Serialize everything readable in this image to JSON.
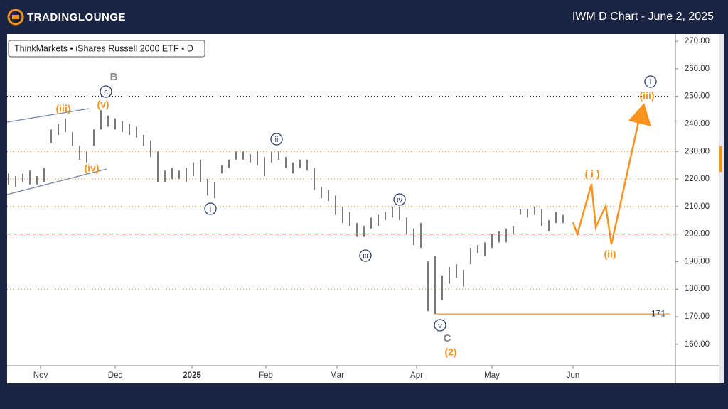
{
  "header": {
    "brand": "TradingLounge",
    "title": "IWM D Chart - June 2, 2025"
  },
  "chart_data": {
    "type": "ohlc",
    "legend": "ThinkMarkets • iShares Russell 2000 ETF • D",
    "color": "#333333",
    "high": [
      222,
      221,
      222,
      223,
      221,
      224,
      238,
      240,
      242,
      237,
      232,
      230,
      238,
      245,
      243,
      242,
      241,
      240,
      239,
      236,
      234,
      230,
      223,
      224,
      223,
      224,
      226,
      227,
      220,
      219,
      225,
      227,
      230,
      230,
      229,
      230,
      228,
      230,
      230,
      228,
      226,
      227,
      227,
      224,
      217,
      216,
      214,
      210,
      208,
      204,
      203,
      206,
      207,
      208,
      210,
      210,
      206,
      202,
      204,
      190,
      192,
      185,
      188,
      189,
      187,
      195,
      196,
      197,
      200,
      201,
      202,
      203,
      209,
      209,
      210,
      209,
      205,
      208,
      207
    ],
    "low": [
      218,
      217,
      219,
      218,
      218,
      219,
      233,
      236,
      237,
      232,
      227,
      226,
      232,
      238,
      239,
      238,
      237,
      236,
      235,
      232,
      228,
      219,
      219,
      220,
      220,
      219,
      221,
      219,
      214,
      213,
      222,
      224,
      227,
      227,
      226,
      225,
      221,
      226,
      227,
      224,
      222,
      224,
      223,
      216,
      213,
      212,
      207,
      204,
      203,
      199,
      199,
      202,
      203,
      205,
      206,
      205,
      200,
      196,
      195,
      172,
      171,
      176,
      182,
      184,
      181,
      189,
      193,
      192,
      195,
      197,
      197,
      200,
      207,
      206,
      207,
      203,
      201,
      204,
      204
    ],
    "xlim": [
      -0.2,
      93.8
    ],
    "xticks": [
      {
        "value": 4.5,
        "label": "Nov"
      },
      {
        "value": 15,
        "label": "Dec"
      },
      {
        "value": 25.8,
        "label": "2025"
      },
      {
        "value": 36.2,
        "label": "Feb"
      },
      {
        "value": 46.2,
        "label": "Mar"
      },
      {
        "value": 57.4,
        "label": "Apr"
      },
      {
        "value": 68,
        "label": "May"
      },
      {
        "value": 79.4,
        "label": "Jun"
      }
    ],
    "ylim": [
      152.2,
      272.1
    ],
    "yticks": [
      {
        "value": 160,
        "label": "160.00"
      },
      {
        "value": 170,
        "label": "170.00"
      },
      {
        "value": 180,
        "label": "180.00"
      },
      {
        "value": 190,
        "label": "190.00"
      },
      {
        "value": 200,
        "label": "200.00"
      },
      {
        "value": 210,
        "label": "210.00"
      },
      {
        "value": 220,
        "label": "220.00"
      },
      {
        "value": 230,
        "label": "230.00"
      },
      {
        "value": 240,
        "label": "240.00"
      },
      {
        "value": 250,
        "label": "250.00"
      },
      {
        "value": 260,
        "label": "260.00"
      },
      {
        "value": 270,
        "label": "270.00"
      }
    ],
    "levels": [
      {
        "value": 250,
        "color": "#000000",
        "dash": "1,3"
      },
      {
        "value": 230,
        "color": "#f7931e",
        "dash": "1,3"
      },
      {
        "value": 220,
        "color": "#f7931e",
        "dash": "1,3"
      },
      {
        "value": 210,
        "color": "#f7931e",
        "dash": "1,3"
      },
      {
        "value": 180,
        "color": "#f7931e",
        "dash": "1,3"
      },
      {
        "value": 200,
        "color": "#e53935",
        "dash": "5,4"
      }
    ],
    "support": {
      "value": 171,
      "color": "#f7931e"
    },
    "annotations": [
      {
        "text": "B",
        "color": "#888888",
        "circled": false
      },
      {
        "text": "c",
        "color": "#2b3a67",
        "circled": true
      },
      {
        "text": "(v)",
        "color": "#f7931e",
        "circled": false
      },
      {
        "text": "(iii)",
        "color": "#f7931e",
        "circled": false
      },
      {
        "text": "(iv)",
        "color": "#f7931e",
        "circled": false
      },
      {
        "text": "i",
        "color": "#2b3a67",
        "circled": true
      },
      {
        "text": "ii",
        "color": "#2b3a67",
        "circled": true
      },
      {
        "text": "iii",
        "color": "#2b3a67",
        "circled": true
      },
      {
        "text": "iv",
        "color": "#2b3a67",
        "circled": true
      },
      {
        "text": "v",
        "color": "#2b3a67",
        "circled": true
      },
      {
        "text": "C",
        "color": "#888888",
        "circled": false
      },
      {
        "text": "(2)",
        "color": "#f7931e",
        "circled": false
      },
      {
        "text": "( i )",
        "color": "#f7931e",
        "circled": false
      },
      {
        "text": "(ii)",
        "color": "#f7931e",
        "circled": false
      },
      {
        "text": "i",
        "color": "#2b3a67",
        "circled": true
      },
      {
        "text": "(iii)",
        "color": "#f7931e",
        "circled": false
      }
    ]
  }
}
